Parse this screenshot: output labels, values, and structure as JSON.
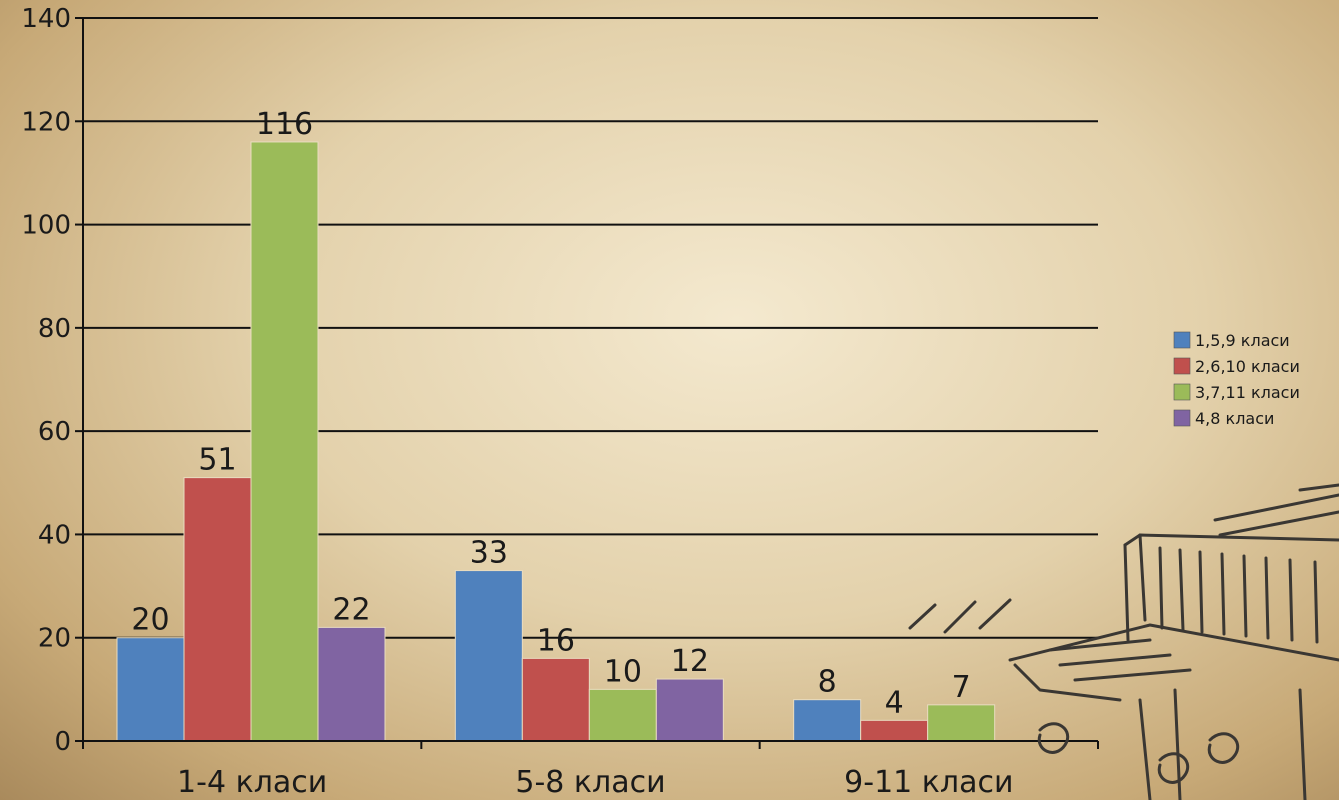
{
  "chart_data": {
    "type": "bar",
    "categories": [
      "1-4 класи",
      "5-8 класи",
      "9-11 класи"
    ],
    "series": [
      {
        "name": "1,5,9 класи",
        "color": "#4f81bd",
        "values": [
          20,
          33,
          8
        ]
      },
      {
        "name": "2,6,10 класи",
        "color": "#c0504d",
        "values": [
          51,
          16,
          4
        ]
      },
      {
        "name": "3,7,11 класи",
        "color": "#9bbb59",
        "values": [
          116,
          10,
          7
        ]
      },
      {
        "name": "4,8 класи",
        "color": "#8064a2",
        "values": [
          22,
          12,
          null
        ]
      }
    ],
    "yticks": [
      0,
      20,
      40,
      60,
      80,
      100,
      120,
      140
    ],
    "ylim": [
      0,
      140
    ],
    "grid": true,
    "legend": "right",
    "data_labels": true
  }
}
